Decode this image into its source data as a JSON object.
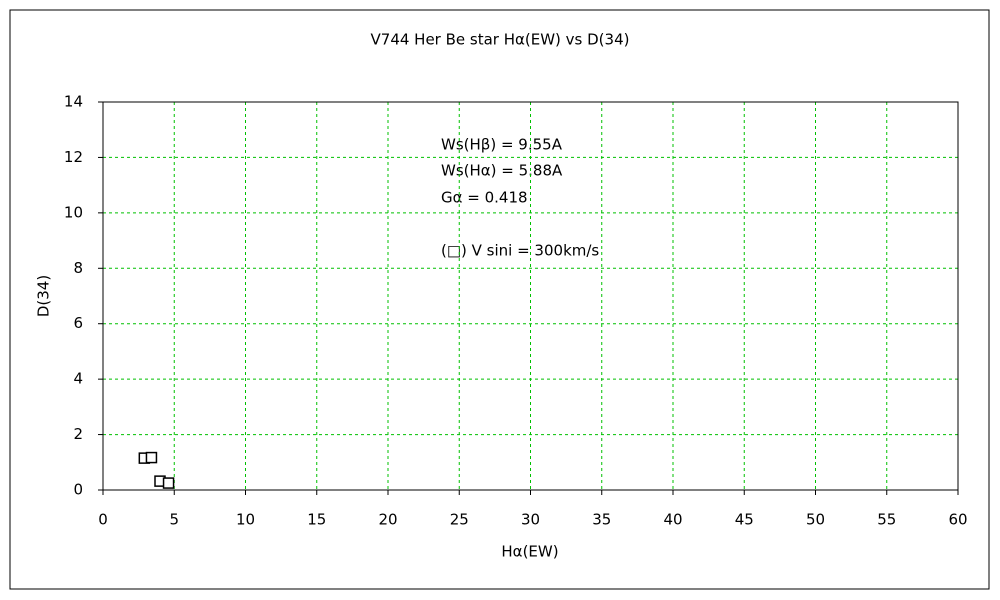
{
  "chart_data": {
    "type": "scatter",
    "title": "V744 Her    Be star    Hα(EW) vs D(34)",
    "x_label": "Hα(EW)",
    "y_label": "D(34)",
    "annotations": [
      "Ws(Hβ) = 9.55A",
      "Ws(Hα) = 5.88A",
      "Gα = 0.418",
      "(□) V sini = 300km/s"
    ],
    "series": [
      {
        "x": [
          2.9,
          3.4,
          4.0,
          4.6
        ],
        "values": [
          1.15,
          1.17,
          0.32,
          0.25
        ],
        "color": "#000000"
      }
    ],
    "xlim": [
      0,
      60
    ],
    "xticks": [
      0,
      5,
      10,
      15,
      20,
      25,
      30,
      35,
      40,
      45,
      50,
      55,
      60
    ],
    "ylim": [
      0,
      14
    ],
    "yticks": [
      0,
      2,
      4,
      6,
      8,
      10,
      12,
      14
    ],
    "grid": true,
    "grid_color": "#00c000"
  }
}
